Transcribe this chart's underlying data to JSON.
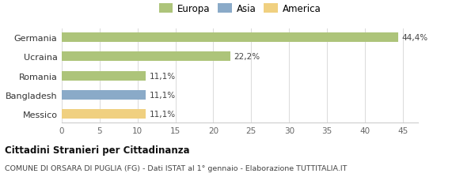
{
  "categories": [
    "Messico",
    "Bangladesh",
    "Romania",
    "Ucraina",
    "Germania"
  ],
  "values": [
    11.1,
    11.1,
    11.1,
    22.2,
    44.4
  ],
  "labels": [
    "11,1%",
    "11,1%",
    "11,1%",
    "22,2%",
    "44,4%"
  ],
  "colors": [
    "#f0d080",
    "#8aaac8",
    "#adc47a",
    "#adc47a",
    "#adc47a"
  ],
  "legend_items": [
    {
      "label": "Europa",
      "color": "#adc47a"
    },
    {
      "label": "Asia",
      "color": "#8aaac8"
    },
    {
      "label": "America",
      "color": "#f0d080"
    }
  ],
  "xlim": [
    0,
    47
  ],
  "xticks": [
    0,
    5,
    10,
    15,
    20,
    25,
    30,
    35,
    40,
    45
  ],
  "title_bold": "Cittadini Stranieri per Cittadinanza",
  "subtitle": "COMUNE DI ORSARA DI PUGLIA (FG) - Dati ISTAT al 1° gennaio - Elaborazione TUTTITALIA.IT",
  "background_color": "#ffffff",
  "bar_height": 0.5
}
